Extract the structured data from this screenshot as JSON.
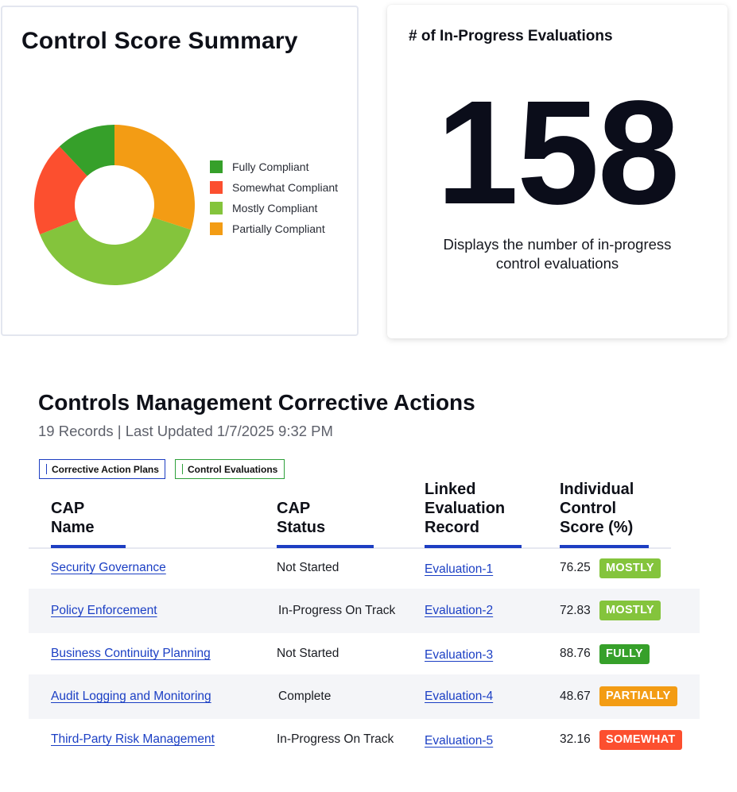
{
  "summary_card": {
    "title": "Control Score Summary",
    "legend": [
      {
        "label": "Fully Compliant",
        "color": "#36a02a"
      },
      {
        "label": "Somewhat Compliant",
        "color": "#fc4f2f"
      },
      {
        "label": "Mostly Compliant",
        "color": "#84c43c"
      },
      {
        "label": "Partially Compliant",
        "color": "#f39c14"
      }
    ]
  },
  "chart_data": {
    "type": "pie",
    "style": "donut",
    "slices": [
      {
        "label": "Partially Compliant",
        "value": 30,
        "color": "#f39c14"
      },
      {
        "label": "Mostly Compliant",
        "value": 39,
        "color": "#84c43c"
      },
      {
        "label": "Somewhat Compliant",
        "value": 19,
        "color": "#fc4f2f"
      },
      {
        "label": "Fully Compliant",
        "value": 12,
        "color": "#36a02a"
      }
    ],
    "title": "Control Score Summary",
    "legend_position": "right"
  },
  "kpi_card": {
    "title": "# of In-Progress Evaluations",
    "value": "158",
    "description_line1": "Displays the number of in-progress",
    "description_line2": "control evaluations"
  },
  "section": {
    "title": "Controls Management Corrective Actions",
    "subtitle": "19 Records | Last Updated 1/7/2025 9:32 PM",
    "tabs": [
      {
        "label": "Corrective Action Plans",
        "color": "#1d3ec2"
      },
      {
        "label": "Control Evaluations",
        "color": "#2ea03a"
      }
    ]
  },
  "table": {
    "headers": {
      "cap_name": [
        "CAP",
        "Name"
      ],
      "cap_status": [
        "CAP",
        "Status"
      ],
      "linked_record": [
        "Linked",
        "Evaluation",
        "Record"
      ],
      "score": [
        "Individual",
        "Control",
        "Score (%)"
      ]
    },
    "rows": [
      {
        "name": "Security Governance",
        "status": "Not Started",
        "record": "Evaluation-1",
        "score": "76.25",
        "badge": "MOSTLY",
        "badge_color": "#84c43c"
      },
      {
        "name": "Policy Enforcement",
        "status": "In-Progress On Track",
        "record": "Evaluation-2",
        "score": "72.83",
        "badge": "MOSTLY",
        "badge_color": "#84c43c"
      },
      {
        "name": "Business Continuity Planning",
        "status": "Not Started",
        "record": "Evaluation-3",
        "score": "88.76",
        "badge": "FULLY",
        "badge_color": "#36a02a"
      },
      {
        "name": "Audit Logging and Monitoring",
        "status": "Complete",
        "record": "Evaluation-4",
        "score": "48.67",
        "badge": "PARTIALLY",
        "badge_color": "#f39c14"
      },
      {
        "name": "Third-Party Risk Management",
        "status": "In-Progress On Track",
        "record": "Evaluation-5",
        "score": "32.16",
        "badge": "SOMEWHAT",
        "badge_color": "#fc4f2f"
      }
    ]
  }
}
